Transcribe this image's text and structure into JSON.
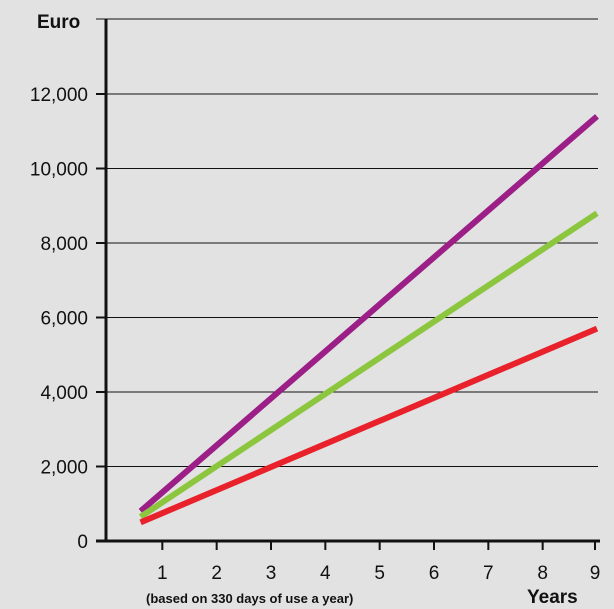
{
  "chart_data": {
    "type": "line",
    "ylabel": "Euro",
    "xlabel": "Years",
    "note": "(based on 330 days of use a year)",
    "x_ticks": [
      1,
      2,
      3,
      4,
      5,
      6,
      7,
      8,
      9
    ],
    "y_ticks": [
      0,
      2000,
      4000,
      6000,
      8000,
      10000,
      12000
    ],
    "y_tick_labels": [
      "0",
      "2,000",
      "4,000",
      "6,000",
      "8,000",
      "10,000",
      "12,000"
    ],
    "xlim": [
      0,
      9
    ],
    "ylim": [
      0,
      13500
    ],
    "grid": "horizontal",
    "series": [
      {
        "color": "#9b1f86",
        "points": [
          [
            0.6,
            800
          ],
          [
            9,
            11400
          ]
        ]
      },
      {
        "color": "#8cc63f",
        "points": [
          [
            0.6,
            650
          ],
          [
            9,
            8800
          ]
        ]
      },
      {
        "color": "#e8212a",
        "points": [
          [
            0.6,
            500
          ],
          [
            9,
            5700
          ]
        ]
      }
    ]
  }
}
